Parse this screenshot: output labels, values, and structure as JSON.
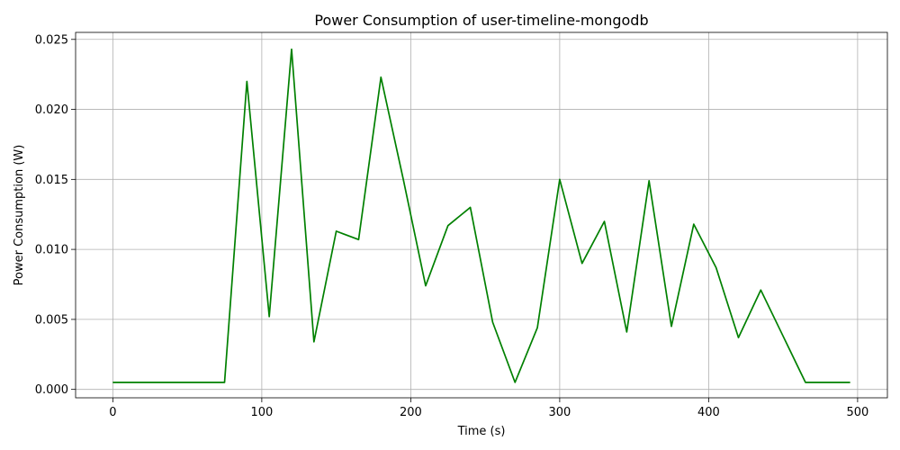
{
  "chart_data": {
    "type": "line",
    "title": "Power Consumption of user-timeline-mongodb",
    "xlabel": "Time (s)",
    "ylabel": "Power Consumption (W)",
    "xlim": [
      -25,
      520
    ],
    "ylim": [
      -0.0006,
      0.0255
    ],
    "xticks": [
      0,
      100,
      200,
      300,
      400,
      500
    ],
    "xtick_labels": [
      "0",
      "100",
      "200",
      "300",
      "400",
      "500"
    ],
    "yticks": [
      0,
      0.005,
      0.01,
      0.015,
      0.02,
      0.025
    ],
    "ytick_labels": [
      "0.000",
      "0.005",
      "0.010",
      "0.015",
      "0.020",
      "0.025"
    ],
    "grid": true,
    "legend": false,
    "series": [
      {
        "color": "#008000",
        "x": [
          0,
          15,
          30,
          45,
          60,
          75,
          90,
          105,
          120,
          135,
          150,
          165,
          180,
          195,
          210,
          225,
          240,
          255,
          270,
          285,
          300,
          315,
          330,
          345,
          360,
          375,
          390,
          405,
          420,
          435,
          450,
          465,
          480,
          495
        ],
        "y": [
          0.0005,
          0.0005,
          0.0005,
          0.0005,
          0.0005,
          0.0005,
          0.022,
          0.0052,
          0.0243,
          0.0034,
          0.0113,
          0.0107,
          0.0223,
          0.015,
          0.0074,
          0.0117,
          0.013,
          0.0048,
          0.0005,
          0.0044,
          0.015,
          0.009,
          0.012,
          0.0041,
          0.0149,
          0.0045,
          0.0118,
          0.0087,
          0.0037,
          0.0071,
          0.0038,
          0.0005,
          0.0005,
          0.0005
        ]
      }
    ]
  }
}
